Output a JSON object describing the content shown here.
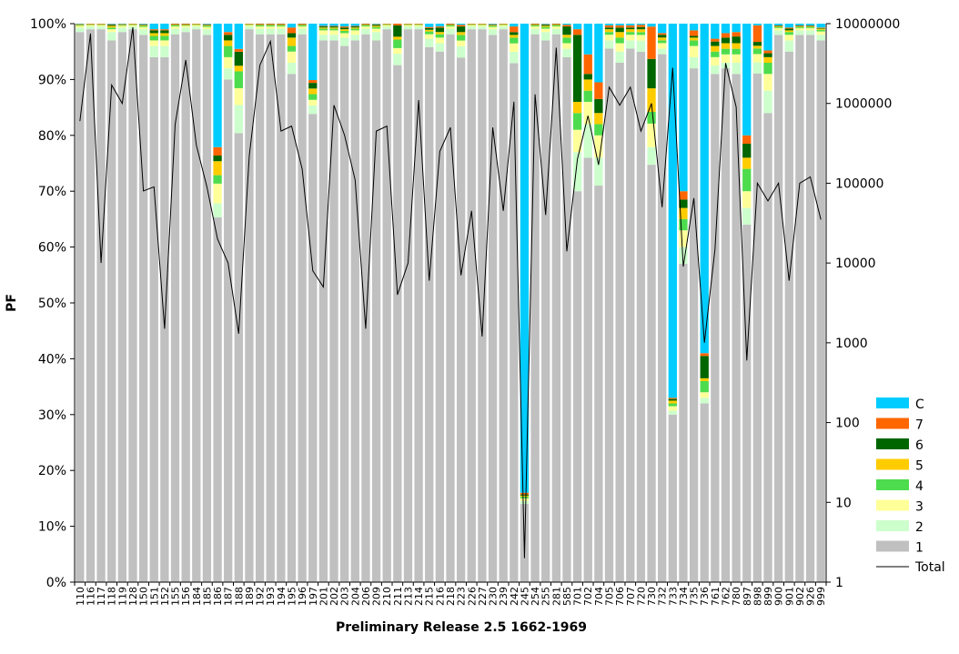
{
  "chart_data": {
    "type": "bar",
    "stacked": true,
    "normalized_percent": true,
    "title": "",
    "xlabel": "Preliminary Release 2.5 1662-1969",
    "ylabel": "PF",
    "ylim": [
      0,
      100
    ],
    "y_ticks": [
      "0%",
      "10%",
      "20%",
      "30%",
      "40%",
      "50%",
      "60%",
      "70%",
      "80%",
      "90%",
      "100%"
    ],
    "y2_scale": "log",
    "y2lim": [
      1,
      10000000
    ],
    "y2_ticks": [
      "1",
      "10",
      "100",
      "1000",
      "10000",
      "100000",
      "1000000",
      "10000000"
    ],
    "legend_position": "right",
    "grid": false,
    "categories": [
      "110",
      "116",
      "117",
      "118",
      "119",
      "128",
      "150",
      "151",
      "152",
      "155",
      "156",
      "184",
      "185",
      "186",
      "187",
      "188",
      "189",
      "192",
      "193",
      "194",
      "195",
      "196",
      "197",
      "201",
      "202",
      "203",
      "204",
      "206",
      "209",
      "210",
      "211",
      "213",
      "214",
      "215",
      "216",
      "218",
      "223",
      "226",
      "227",
      "230",
      "239",
      "242",
      "245",
      "254",
      "255",
      "281",
      "585",
      "701",
      "702",
      "704",
      "705",
      "706",
      "707",
      "720",
      "730",
      "732",
      "733",
      "734",
      "735",
      "736",
      "761",
      "762",
      "780",
      "897",
      "898",
      "899",
      "900",
      "901",
      "902",
      "926",
      "999"
    ],
    "series": [
      {
        "name": "1",
        "color": "#c0c0c0",
        "values": [
          98.5,
          99,
          99,
          97,
          98.5,
          99,
          98,
          94,
          94,
          98,
          98.5,
          99,
          98,
          65,
          90,
          80,
          99,
          98,
          98,
          98,
          91,
          98,
          83,
          97,
          97,
          96,
          97,
          98,
          97,
          99,
          91,
          99,
          99,
          96,
          95,
          98,
          93,
          99,
          99,
          98,
          99,
          92,
          14,
          98,
          97,
          98,
          94,
          70,
          76,
          71,
          96,
          93,
          96,
          94,
          71,
          95,
          30,
          57,
          92,
          32,
          91,
          92,
          91,
          64,
          92,
          84,
          98,
          95,
          98,
          98,
          97
        ]
      },
      {
        "name": "2",
        "color": "#ccffcc",
        "values": [
          0.8,
          0.5,
          0.5,
          1.5,
          0.8,
          0.5,
          1,
          2,
          2,
          1,
          0.8,
          0.5,
          1,
          2.5,
          2,
          5,
          0.5,
          1,
          1,
          1,
          2,
          1,
          1.5,
          1,
          1,
          1.5,
          1,
          1,
          1.5,
          0.5,
          2,
          0.5,
          0.5,
          1.5,
          1.5,
          1,
          2,
          0.5,
          0.5,
          1,
          0.5,
          2,
          0.5,
          1,
          1.5,
          1,
          1.5,
          7,
          6,
          5,
          1.5,
          2,
          1.5,
          2,
          3,
          1,
          0.7,
          3,
          2,
          1,
          1.5,
          1,
          2,
          3,
          2,
          4,
          0.8,
          2,
          0.8,
          0.8,
          1
        ]
      },
      {
        "name": "3",
        "color": "#ffff99",
        "values": [
          0.3,
          0.2,
          0.2,
          0.5,
          0.3,
          0.2,
          0.4,
          1,
          1,
          0.4,
          0.3,
          0.2,
          0.4,
          3.5,
          2,
          3,
          0.2,
          0.4,
          0.4,
          0.4,
          2,
          0.4,
          1,
          0.8,
          0.8,
          0.8,
          0.8,
          0.4,
          0.6,
          0.2,
          1,
          0.2,
          0.2,
          0.8,
          1,
          0.4,
          1,
          0.2,
          0.2,
          0.4,
          0.2,
          1.5,
          0.5,
          0.4,
          0.6,
          0.4,
          1,
          4,
          4,
          4,
          1,
          1.5,
          1,
          1,
          4,
          1,
          0.8,
          3,
          2,
          1,
          1.5,
          1.5,
          1.5,
          3,
          1.5,
          3,
          0.4,
          1,
          0.4,
          0.4,
          0.6
        ]
      },
      {
        "name": "4",
        "color": "#4ddc4d",
        "values": [
          0.1,
          0.1,
          0.1,
          0.3,
          0.1,
          0.1,
          0.2,
          0.8,
          0.8,
          0.2,
          0.1,
          0.1,
          0.2,
          1.5,
          2,
          3,
          0.1,
          0.2,
          0.2,
          0.2,
          1,
          0.2,
          1,
          0.3,
          0.3,
          0.4,
          0.3,
          0.2,
          0.3,
          0.1,
          1.5,
          0.1,
          0.1,
          0.5,
          0.6,
          0.2,
          1,
          0.1,
          0.1,
          0.2,
          0.1,
          1,
          0.3,
          0.2,
          0.3,
          0.2,
          1,
          3,
          2,
          2,
          0.5,
          1,
          0.5,
          0.5,
          2,
          0.5,
          0.5,
          2,
          1,
          2,
          1,
          1,
          1,
          4,
          1,
          2,
          0.2,
          0.5,
          0.2,
          0.2,
          0.3
        ]
      },
      {
        "name": "5",
        "color": "#ffcc00",
        "values": [
          0.1,
          0.1,
          0.1,
          0.3,
          0.1,
          0.1,
          0.1,
          0.5,
          0.5,
          0.1,
          0.1,
          0.1,
          0.1,
          2.5,
          1,
          1,
          0.1,
          0.1,
          0.1,
          0.1,
          1.5,
          0.1,
          1,
          0.2,
          0.2,
          0.3,
          0.2,
          0.1,
          0.2,
          0.1,
          0.5,
          0.1,
          0.1,
          0.3,
          0.4,
          0.1,
          0.5,
          0.1,
          0.1,
          0.1,
          0.1,
          0.5,
          0.2,
          0.1,
          0.2,
          0.1,
          0.5,
          2,
          2,
          2,
          0.5,
          1,
          0.5,
          0.5,
          4,
          0.5,
          0.5,
          2,
          0.5,
          0.5,
          1,
          1,
          1,
          2,
          0.5,
          1,
          0.1,
          0.3,
          0.1,
          0.1,
          0.2
        ]
      },
      {
        "name": "6",
        "color": "#006600",
        "values": [
          0.1,
          0.05,
          0.05,
          0.2,
          0.1,
          0.05,
          0.1,
          0.5,
          0.5,
          0.1,
          0.1,
          0.05,
          0.1,
          1,
          1,
          2.5,
          0.05,
          0.1,
          0.1,
          0.1,
          0.8,
          0.1,
          1,
          0.2,
          0.2,
          0.3,
          0.2,
          0.1,
          0.2,
          0.05,
          2,
          0.05,
          0.05,
          0.3,
          0.8,
          0.1,
          1,
          0.05,
          0.05,
          0.1,
          0.05,
          0.5,
          0.2,
          0.1,
          0.2,
          0.1,
          1.5,
          12,
          1,
          2.5,
          0.3,
          0.8,
          0.3,
          0.4,
          5,
          0.5,
          0.3,
          1.5,
          0.3,
          4,
          0.8,
          1,
          1.2,
          2.5,
          0.7,
          0.7,
          0.1,
          0.3,
          0.1,
          0.1,
          0.1
        ]
      },
      {
        "name": "7",
        "color": "#ff6600",
        "values": [
          0.05,
          0.05,
          0.05,
          0.1,
          0.05,
          0.05,
          0.1,
          0.2,
          0.2,
          0.1,
          0.1,
          0.05,
          0.1,
          1.5,
          0.5,
          0.5,
          0.05,
          0.1,
          0.1,
          0.1,
          1,
          0.1,
          0.5,
          0.1,
          0.1,
          0.2,
          0.1,
          0.1,
          0.1,
          0.05,
          0.3,
          0.05,
          0.05,
          0.2,
          0.2,
          0.1,
          0.3,
          0.05,
          0.05,
          0.1,
          0.05,
          1,
          0.3,
          0.1,
          0.1,
          0.1,
          0.3,
          1,
          3.5,
          3,
          0.4,
          0.4,
          0.4,
          0.4,
          5.5,
          0.3,
          0.2,
          1.5,
          1,
          0.5,
          0.5,
          0.8,
          0.8,
          1.5,
          3,
          0.5,
          0.1,
          0.2,
          0.1,
          0.1,
          0.1
        ]
      },
      {
        "name": "C",
        "color": "#00ccff",
        "values": [
          0.05,
          0,
          0,
          0.1,
          0.05,
          0,
          0.1,
          1,
          1,
          0,
          0,
          0,
          0.1,
          22,
          1.5,
          4.5,
          0,
          0,
          0,
          0,
          0.7,
          0,
          10,
          0.4,
          0.4,
          0.5,
          0.4,
          0,
          0.1,
          0,
          0,
          0,
          0,
          0.6,
          0.5,
          0,
          0.2,
          0,
          0,
          0.1,
          0,
          0.5,
          84,
          0,
          0.1,
          0,
          0.2,
          1,
          5.5,
          10.5,
          0.3,
          0.3,
          0.3,
          0.2,
          0.5,
          1.7,
          67,
          30,
          1.2,
          59,
          2.7,
          1.7,
          1.5,
          20,
          0.3,
          4.8,
          0.3,
          0.7,
          0.3,
          0.3,
          0.7
        ]
      }
    ],
    "line_series": {
      "name": "Total",
      "axis": "right",
      "color": "#000000",
      "values": [
        600000,
        7500000,
        10000,
        1700000,
        1000000,
        9000000,
        80000,
        90000,
        1500,
        550000,
        3500000,
        300000,
        90000,
        20000,
        10000,
        1300,
        220000,
        3000000,
        6000000,
        450000,
        520000,
        150000,
        8000,
        5000,
        950000,
        400000,
        110000,
        1500,
        450000,
        520000,
        4000,
        10000,
        1100000,
        6000,
        250000,
        500000,
        7000,
        45000,
        1200,
        500000,
        45000,
        1050000,
        2,
        1300000,
        40000,
        5000000,
        14000,
        200000,
        700000,
        170000,
        1600000,
        950000,
        1600000,
        450000,
        1000000,
        50000,
        2800000,
        9000,
        65000,
        1000,
        15000,
        3200000,
        900000,
        600,
        100000,
        60000,
        100000,
        6000,
        100000,
        120000,
        35000
      ]
    }
  }
}
